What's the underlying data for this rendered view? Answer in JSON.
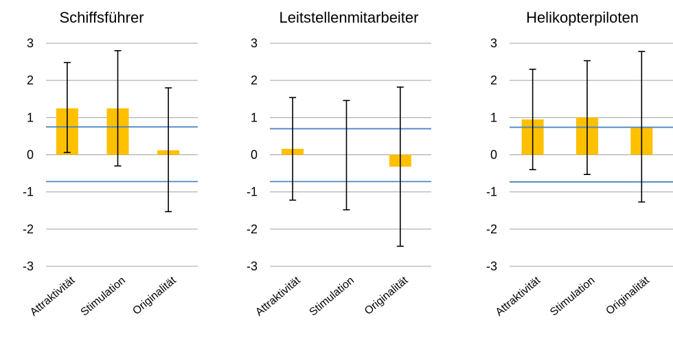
{
  "chart_data": [
    {
      "type": "bar",
      "title": "Schiffsführer",
      "categories": [
        "Attraktivität",
        "Stimulation",
        "Originalität"
      ],
      "values": [
        1.25,
        1.25,
        0.12
      ],
      "error_low": [
        0.06,
        -0.3,
        -1.53
      ],
      "error_high": [
        2.48,
        2.8,
        1.8
      ],
      "reference_lines": [
        0.75,
        -0.72
      ],
      "ylim": [
        -3,
        3
      ],
      "yticks": [
        "3",
        "2",
        "1",
        "0",
        "-1",
        "-2",
        "-3"
      ],
      "grid": true
    },
    {
      "type": "bar",
      "title": "Leitstellenmitarbeiter",
      "categories": [
        "Attraktivität",
        "Stimulation",
        "Originalität"
      ],
      "values": [
        0.16,
        0.0,
        -0.32
      ],
      "error_low": [
        -1.22,
        -1.48,
        -2.46
      ],
      "error_high": [
        1.54,
        1.46,
        1.82
      ],
      "reference_lines": [
        0.7,
        -0.72
      ],
      "ylim": [
        -3,
        3
      ],
      "yticks": [
        "3",
        "2",
        "1",
        "0",
        "-1",
        "-2",
        "-3"
      ],
      "grid": true
    },
    {
      "type": "bar",
      "title": "Helikopterpiloten",
      "categories": [
        "Attraktivität",
        "Stimulation",
        "Originalität"
      ],
      "values": [
        0.95,
        1.0,
        0.72
      ],
      "error_low": [
        -0.4,
        -0.53,
        -1.27
      ],
      "error_high": [
        2.3,
        2.53,
        2.78
      ],
      "reference_lines": [
        0.74,
        -0.73
      ],
      "ylim": [
        -3,
        3
      ],
      "yticks": [
        "3",
        "2",
        "1",
        "0",
        "-1",
        "-2",
        "-3"
      ],
      "grid": true
    }
  ],
  "colors": {
    "bar": "#FFC000",
    "reference_line": "#4A86C5",
    "grid": "#A0A0A0",
    "error_bar": "#000000"
  }
}
